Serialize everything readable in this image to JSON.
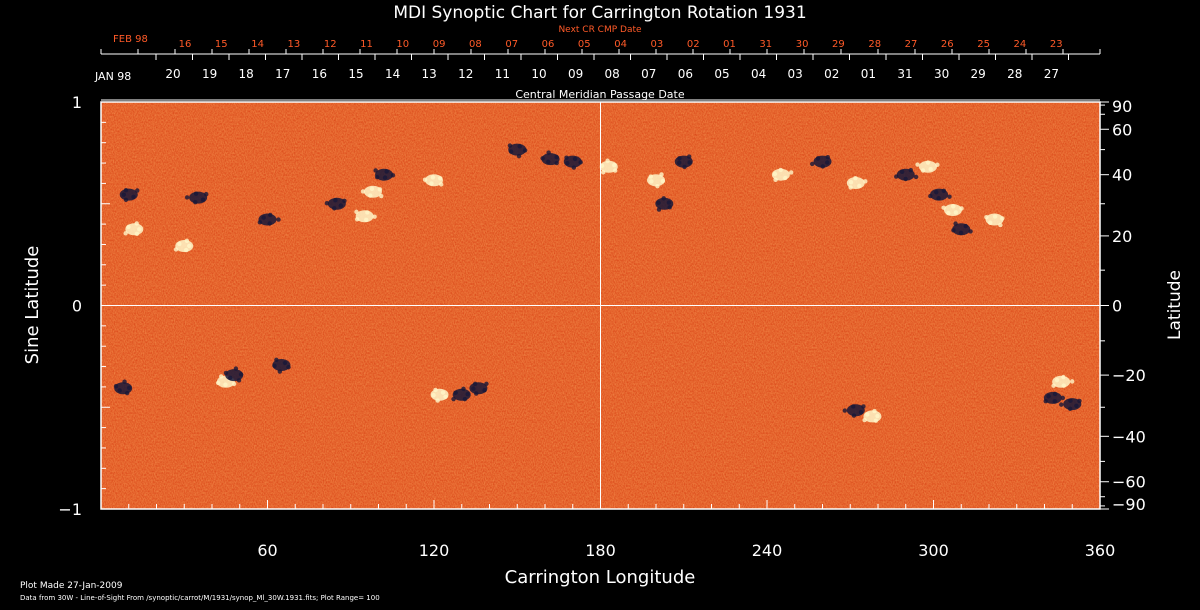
{
  "chart_data": {
    "type": "heatmap",
    "title": "MDI Synoptic Chart for Carrington Rotation 1931",
    "xlabel": "Carrington Longitude",
    "ylabel_left": "Sine Latitude",
    "ylabel_right": "Latitude",
    "xlim": [
      0,
      360
    ],
    "ylim": [
      -1,
      1
    ],
    "x_ticks": [
      "60",
      "120",
      "180",
      "240",
      "300",
      "360"
    ],
    "x_tick_values": [
      60,
      120,
      180,
      240,
      300,
      360
    ],
    "y_left_ticks": [
      "1",
      "0",
      "−1"
    ],
    "y_left_values": [
      1,
      0,
      -1
    ],
    "y_right_ticks": [
      "90",
      "60",
      "40",
      "20",
      "0",
      "−20",
      "−40",
      "−60",
      "−90"
    ],
    "y_right_values": [
      90,
      60,
      40,
      20,
      0,
      -20,
      -40,
      -60,
      -90
    ],
    "grid": {
      "vertical_at": 180,
      "horizontal_at": 0
    },
    "next_cr_label": "Next CR CMP Date",
    "next_cr_month": "FEB 98",
    "next_cr_dates": [
      "16",
      "15",
      "14",
      "13",
      "12",
      "11",
      "10",
      "09",
      "08",
      "07",
      "06",
      "05",
      "04",
      "03",
      "02",
      "01",
      "31",
      "30",
      "29",
      "28",
      "27",
      "26",
      "25",
      "24",
      "23"
    ],
    "cmp_label": "Central Meridian Passage Date",
    "cmp_month": "JAN 98",
    "cmp_dates": [
      "20",
      "19",
      "18",
      "17",
      "16",
      "15",
      "14",
      "13",
      "12",
      "11",
      "10",
      "09",
      "08",
      "07",
      "06",
      "05",
      "04",
      "03",
      "02",
      "01",
      "31",
      "30",
      "29",
      "28",
      "27"
    ],
    "active_regions": [
      {
        "lon": 12,
        "lat": 22,
        "polarity": "pos"
      },
      {
        "lon": 10,
        "lat": 33,
        "polarity": "neg"
      },
      {
        "lon": 30,
        "lat": 17,
        "polarity": "pos"
      },
      {
        "lon": 35,
        "lat": 32,
        "polarity": "neg"
      },
      {
        "lon": 60,
        "lat": 25,
        "polarity": "neg"
      },
      {
        "lon": 85,
        "lat": 30,
        "polarity": "neg"
      },
      {
        "lon": 95,
        "lat": 26,
        "polarity": "pos"
      },
      {
        "lon": 98,
        "lat": 34,
        "polarity": "pos"
      },
      {
        "lon": 102,
        "lat": 40,
        "polarity": "neg"
      },
      {
        "lon": 120,
        "lat": 38,
        "polarity": "pos"
      },
      {
        "lon": 150,
        "lat": 50,
        "polarity": "neg"
      },
      {
        "lon": 162,
        "lat": 46,
        "polarity": "neg"
      },
      {
        "lon": 170,
        "lat": 45,
        "polarity": "neg"
      },
      {
        "lon": 183,
        "lat": 43,
        "polarity": "pos"
      },
      {
        "lon": 200,
        "lat": 38,
        "polarity": "pos"
      },
      {
        "lon": 203,
        "lat": 30,
        "polarity": "neg"
      },
      {
        "lon": 210,
        "lat": 45,
        "polarity": "neg"
      },
      {
        "lon": 245,
        "lat": 40,
        "polarity": "pos"
      },
      {
        "lon": 260,
        "lat": 45,
        "polarity": "neg"
      },
      {
        "lon": 272,
        "lat": 37,
        "polarity": "pos"
      },
      {
        "lon": 290,
        "lat": 40,
        "polarity": "neg"
      },
      {
        "lon": 298,
        "lat": 43,
        "polarity": "pos"
      },
      {
        "lon": 302,
        "lat": 33,
        "polarity": "neg"
      },
      {
        "lon": 307,
        "lat": 28,
        "polarity": "pos"
      },
      {
        "lon": 310,
        "lat": 22,
        "polarity": "neg"
      },
      {
        "lon": 322,
        "lat": 25,
        "polarity": "pos"
      },
      {
        "lon": 45,
        "lat": -22,
        "polarity": "pos"
      },
      {
        "lon": 48,
        "lat": -20,
        "polarity": "neg"
      },
      {
        "lon": 65,
        "lat": -17,
        "polarity": "neg"
      },
      {
        "lon": 8,
        "lat": -24,
        "polarity": "neg"
      },
      {
        "lon": 122,
        "lat": -26,
        "polarity": "pos"
      },
      {
        "lon": 130,
        "lat": -26,
        "polarity": "neg"
      },
      {
        "lon": 136,
        "lat": -24,
        "polarity": "neg"
      },
      {
        "lon": 278,
        "lat": -33,
        "polarity": "pos"
      },
      {
        "lon": 272,
        "lat": -31,
        "polarity": "neg"
      },
      {
        "lon": 346,
        "lat": -22,
        "polarity": "pos"
      },
      {
        "lon": 350,
        "lat": -29,
        "polarity": "neg"
      },
      {
        "lon": 343,
        "lat": -27,
        "polarity": "neg"
      }
    ],
    "colors": {
      "background": "#000000",
      "field_base": "#e8461a",
      "positive": "#fff6c8",
      "negative": "#181838",
      "grid": "#ffffff",
      "next_cr": "#ff5a28"
    }
  },
  "footer": {
    "plot_made": "Plot Made 27-Jan-2009",
    "data_note": "Data from 30W - Line-of-Sight From /synoptic/carrot/M/1931/synop_Ml_30W.1931.fits; Plot Range=  100"
  }
}
